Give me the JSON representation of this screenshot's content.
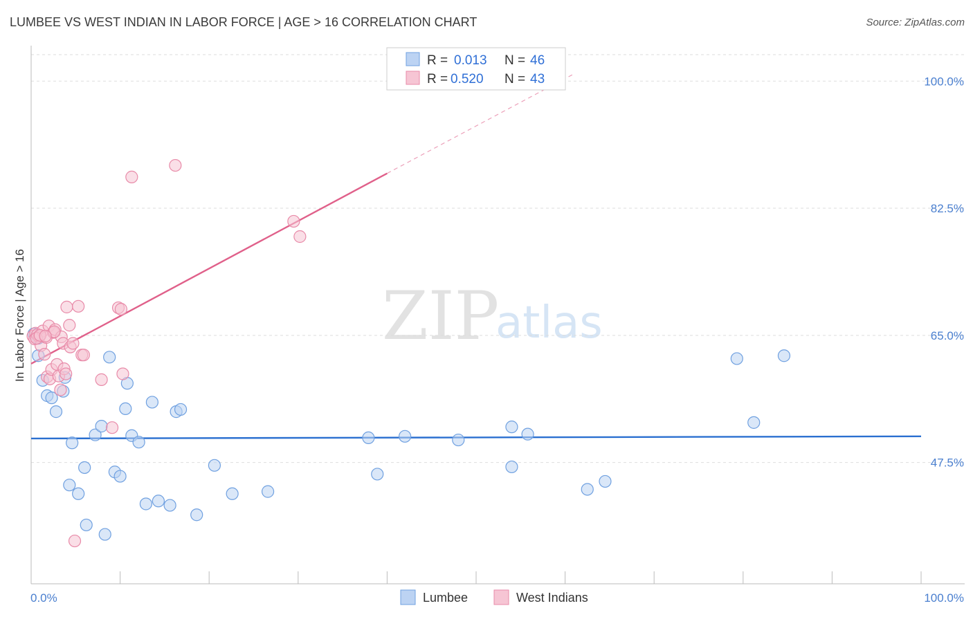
{
  "title": "LUMBEE VS WEST INDIAN IN LABOR FORCE | AGE > 16 CORRELATION CHART",
  "source": "Source: ZipAtlas.com",
  "watermark": {
    "part1": "ZIP",
    "part2": "atlas"
  },
  "colors": {
    "lumbee": "#6fa0e0",
    "lumbee_fill": "#bcd3f3",
    "lumbee_line": "#2a6fd0",
    "westindian": "#e88aa8",
    "westindian_fill": "#f6c5d4",
    "westindian_line": "#e0608a",
    "grid": "#dddddd",
    "axis_text": "#4a7fcf"
  },
  "legend": {
    "rows": [
      {
        "r_label": "R =",
        "r_value": "0.013",
        "n_label": "N =",
        "n_value": "46"
      },
      {
        "r_label": "R =",
        "r_value": "0.520",
        "n_label": "N =",
        "n_value": "43"
      }
    ],
    "bottom": [
      "Lumbee",
      "West Indians"
    ]
  },
  "chart_data": {
    "type": "scatter",
    "title": "LUMBEE VS WEST INDIAN IN LABOR FORCE | AGE > 16 CORRELATION CHART",
    "xlabel": "",
    "ylabel": "In Labor Force | Age > 16",
    "xlim": [
      0,
      100
    ],
    "ylim": [
      30.8,
      104.5
    ],
    "x_tick_labels": [
      "0.0%",
      "100.0%"
    ],
    "y_ticks": [
      47.5,
      65.0,
      82.5,
      100.0
    ],
    "y_tick_labels": [
      "47.5%",
      "65.0%",
      "82.5%",
      "100.0%"
    ],
    "grid": true,
    "series": [
      {
        "name": "Lumbee",
        "points": [
          [
            0.3,
            65.2
          ],
          [
            0.8,
            64.6
          ],
          [
            0.8,
            62.2
          ],
          [
            1.3,
            58.8
          ],
          [
            1.8,
            56.7
          ],
          [
            2.3,
            56.4
          ],
          [
            2.8,
            54.5
          ],
          [
            3.6,
            57.3
          ],
          [
            3.8,
            59.2
          ],
          [
            4.6,
            50.2
          ],
          [
            4.3,
            44.4
          ],
          [
            5.3,
            43.2
          ],
          [
            6.0,
            46.8
          ],
          [
            6.2,
            38.9
          ],
          [
            7.2,
            51.3
          ],
          [
            7.9,
            52.5
          ],
          [
            8.3,
            37.6
          ],
          [
            8.8,
            62.0
          ],
          [
            9.4,
            46.2
          ],
          [
            10.0,
            45.6
          ],
          [
            10.6,
            54.9
          ],
          [
            10.8,
            58.4
          ],
          [
            11.3,
            51.2
          ],
          [
            12.1,
            50.3
          ],
          [
            12.9,
            41.8
          ],
          [
            13.6,
            55.8
          ],
          [
            14.3,
            42.2
          ],
          [
            15.6,
            41.6
          ],
          [
            16.3,
            54.5
          ],
          [
            16.8,
            54.8
          ],
          [
            18.6,
            40.3
          ],
          [
            20.6,
            47.1
          ],
          [
            22.6,
            43.2
          ],
          [
            26.6,
            43.5
          ],
          [
            37.9,
            50.9
          ],
          [
            38.9,
            45.9
          ],
          [
            42.0,
            51.1
          ],
          [
            48.0,
            50.6
          ],
          [
            54.0,
            52.4
          ],
          [
            54.0,
            46.9
          ],
          [
            55.8,
            51.4
          ],
          [
            62.5,
            43.8
          ],
          [
            64.5,
            44.9
          ],
          [
            79.3,
            61.8
          ],
          [
            81.2,
            53.0
          ],
          [
            84.6,
            62.2
          ]
        ],
        "trend": {
          "x0": 0,
          "y0": 50.8,
          "x1": 100,
          "y1": 51.1
        }
      },
      {
        "name": "West Indians",
        "points": [
          [
            0.2,
            64.9
          ],
          [
            0.4,
            64.5
          ],
          [
            0.5,
            65.3
          ],
          [
            0.7,
            65.1
          ],
          [
            0.9,
            64.8
          ],
          [
            1.1,
            63.6
          ],
          [
            1.3,
            65.6
          ],
          [
            1.5,
            62.4
          ],
          [
            1.7,
            64.7
          ],
          [
            1.8,
            59.3
          ],
          [
            2.0,
            66.3
          ],
          [
            2.1,
            59.0
          ],
          [
            2.3,
            60.3
          ],
          [
            2.5,
            65.4
          ],
          [
            2.7,
            65.8
          ],
          [
            2.9,
            61.0
          ],
          [
            3.1,
            59.4
          ],
          [
            3.3,
            57.5
          ],
          [
            3.4,
            64.8
          ],
          [
            3.6,
            63.9
          ],
          [
            3.7,
            60.4
          ],
          [
            3.9,
            59.7
          ],
          [
            4.0,
            68.9
          ],
          [
            4.3,
            66.4
          ],
          [
            4.4,
            63.4
          ],
          [
            4.7,
            63.9
          ],
          [
            4.9,
            36.7
          ],
          [
            5.3,
            69.0
          ],
          [
            5.7,
            62.3
          ],
          [
            5.9,
            62.3
          ],
          [
            7.9,
            58.9
          ],
          [
            9.1,
            52.3
          ],
          [
            9.8,
            68.8
          ],
          [
            10.1,
            68.6
          ],
          [
            10.3,
            59.7
          ],
          [
            11.3,
            86.8
          ],
          [
            16.2,
            88.4
          ],
          [
            29.5,
            80.7
          ],
          [
            30.2,
            78.6
          ],
          [
            0.6,
            64.6
          ],
          [
            1.0,
            65.0
          ],
          [
            2.6,
            65.5
          ],
          [
            1.6,
            64.9
          ]
        ],
        "trend": {
          "x0": 0,
          "y0": 61.1,
          "x1": 40,
          "y1": 87.3
        },
        "trend_extension": {
          "x0": 40,
          "y0": 87.3,
          "x1": 61,
          "y1": 101.0
        }
      }
    ],
    "legend_position": "top-center"
  }
}
